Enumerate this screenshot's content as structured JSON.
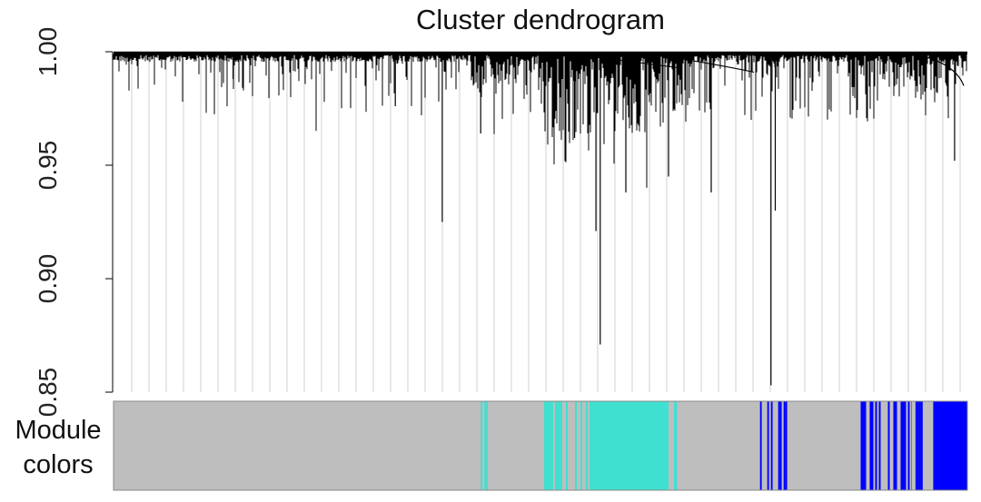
{
  "chart_data": {
    "type": "dendrogram",
    "title": "Cluster dendrogram",
    "ylabel": "",
    "xlabel": "",
    "ylim": [
      0.85,
      1.0
    ],
    "yticks": [
      "1.00",
      "0.95",
      "0.90",
      "0.85"
    ],
    "ytick_values": [
      1.0,
      0.95,
      0.9,
      0.85
    ],
    "leaf_count": 940,
    "grid": false,
    "notable_drops": [
      {
        "position": 0.14,
        "height": 0.988
      },
      {
        "position": 0.33,
        "height": 0.976
      },
      {
        "position": 0.385,
        "height": 0.925
      },
      {
        "position": 0.43,
        "height": 0.964
      },
      {
        "position": 0.54,
        "height": 0.962
      },
      {
        "position": 0.565,
        "height": 0.921
      },
      {
        "position": 0.57,
        "height": 0.871
      },
      {
        "position": 0.6,
        "height": 0.938
      },
      {
        "position": 0.65,
        "height": 0.945
      },
      {
        "position": 0.7,
        "height": 0.938
      },
      {
        "position": 0.77,
        "height": 0.853
      },
      {
        "position": 0.775,
        "height": 0.93
      },
      {
        "position": 0.985,
        "height": 0.952
      }
    ],
    "color_bar": {
      "label_line1": "Module",
      "label_line2": "colors",
      "palette": {
        "grey": "#bebebe",
        "turquoise": "#40e0d0",
        "blue": "#0000ff"
      },
      "segments": [
        {
          "color": "grey",
          "start": 0.0,
          "end": 0.43
        },
        {
          "color": "turquoise",
          "start": 0.43,
          "end": 0.445,
          "mixed": true
        },
        {
          "color": "grey",
          "start": 0.445,
          "end": 0.5
        },
        {
          "color": "turquoise",
          "start": 0.5,
          "end": 0.565,
          "mixed": true
        },
        {
          "color": "turquoise",
          "start": 0.565,
          "end": 0.65
        },
        {
          "color": "turquoise",
          "start": 0.65,
          "end": 0.66,
          "mixed": true
        },
        {
          "color": "grey",
          "start": 0.66,
          "end": 0.755
        },
        {
          "color": "blue",
          "start": 0.755,
          "end": 0.795,
          "mixed": true
        },
        {
          "color": "grey",
          "start": 0.795,
          "end": 0.875
        },
        {
          "color": "blue",
          "start": 0.875,
          "end": 0.935,
          "mixed": true
        },
        {
          "color": "blue",
          "start": 0.935,
          "end": 0.96,
          "mixed": true
        },
        {
          "color": "blue",
          "start": 0.96,
          "end": 1.0
        }
      ]
    }
  }
}
